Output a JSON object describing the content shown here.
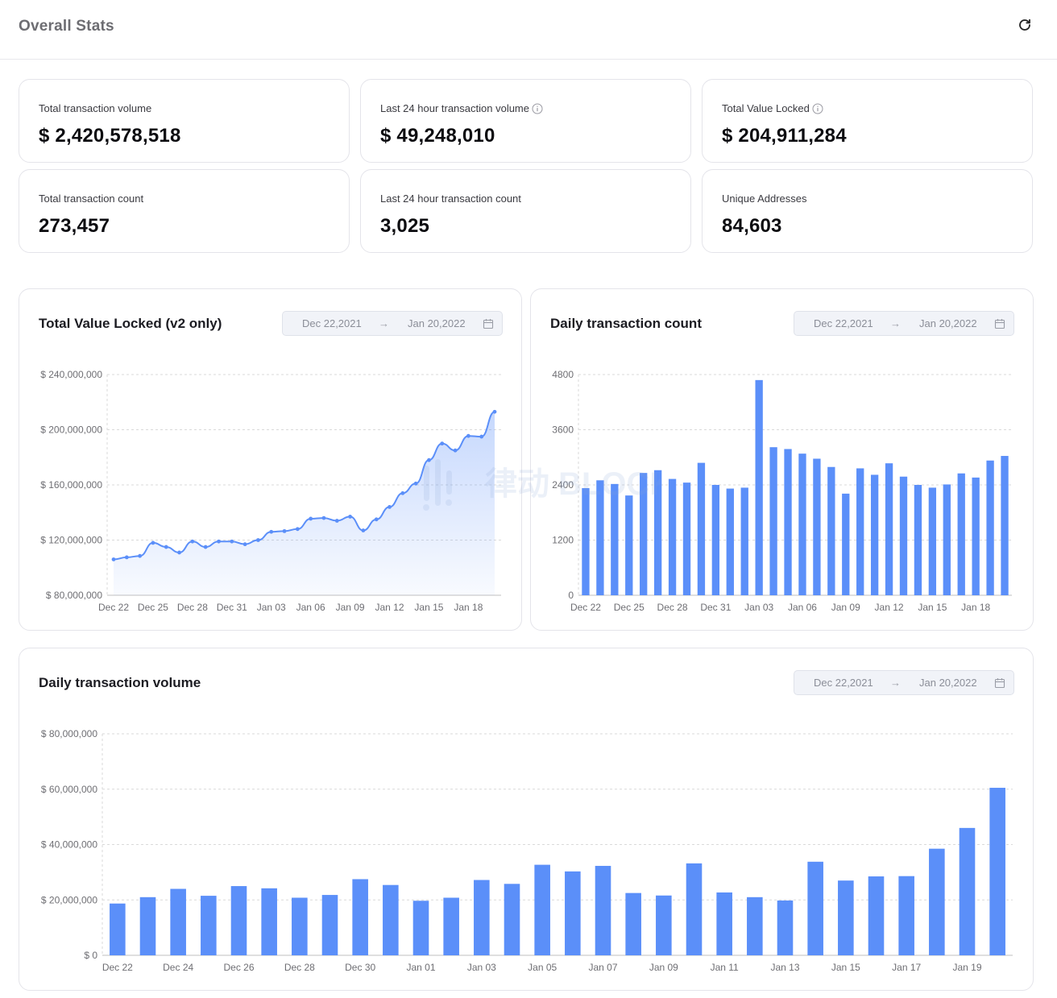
{
  "header": {
    "title": "Overall Stats",
    "refresh_icon": "refresh-icon"
  },
  "stats": [
    {
      "label": "Total transaction volume",
      "value": "$ 2,420,578,518",
      "info": false
    },
    {
      "label": "Last 24 hour transaction volume",
      "value": "$ 49,248,010",
      "info": true
    },
    {
      "label": "Total Value Locked",
      "value": "$ 204,911,284",
      "info": true
    },
    {
      "label": "Total transaction count",
      "value": "273,457",
      "info": false
    },
    {
      "label": "Last 24 hour transaction count",
      "value": "3,025",
      "info": false
    },
    {
      "label": "Unique Addresses",
      "value": "84,603",
      "info": false
    }
  ],
  "date_range": {
    "start": "Dec 22,2021",
    "arrow": "→",
    "end": "Jan 20,2022"
  },
  "colors": {
    "accent": "#5b8ff9",
    "grid": "#d9d9d9",
    "axis_text": "#6e6e73"
  },
  "watermark_text": "律动 BLOCKBEATS",
  "chart_data": [
    {
      "id": "tvl",
      "type": "area",
      "title": "Total Value Locked (v2 only)",
      "x": [
        "Dec 22",
        "Dec 23",
        "Dec 24",
        "Dec 25",
        "Dec 26",
        "Dec 27",
        "Dec 28",
        "Dec 29",
        "Dec 30",
        "Dec 31",
        "Jan 01",
        "Jan 02",
        "Jan 03",
        "Jan 04",
        "Jan 05",
        "Jan 06",
        "Jan 07",
        "Jan 08",
        "Jan 09",
        "Jan 10",
        "Jan 11",
        "Jan 12",
        "Jan 13",
        "Jan 14",
        "Jan 15",
        "Jan 16",
        "Jan 17",
        "Jan 18",
        "Jan 19",
        "Jan 20"
      ],
      "x_tick_labels": [
        "Dec 22",
        "Dec 25",
        "Dec 28",
        "Dec 31",
        "Jan 03",
        "Jan 06",
        "Jan 09",
        "Jan 12",
        "Jan 15",
        "Jan 18"
      ],
      "values": [
        106000000,
        107500000,
        108500000,
        118000000,
        115000000,
        111000000,
        119000000,
        115000000,
        119000000,
        119000000,
        117000000,
        120000000,
        126000000,
        126500000,
        128000000,
        135500000,
        136000000,
        134000000,
        137000000,
        127000000,
        135000000,
        144000000,
        154000000,
        161000000,
        178000000,
        190000000,
        185000000,
        195500000,
        195000000,
        213000000
      ],
      "y_ticks": [
        "$ 240,000,000",
        "$ 200,000,000",
        "$ 160,000,000",
        "$ 120,000,000",
        "$ 80,000,000"
      ],
      "ylim": [
        80000000,
        240000000
      ]
    },
    {
      "id": "count",
      "type": "bar",
      "title": "Daily transaction count",
      "x": [
        "Dec 22",
        "Dec 23",
        "Dec 24",
        "Dec 25",
        "Dec 26",
        "Dec 27",
        "Dec 28",
        "Dec 29",
        "Dec 30",
        "Dec 31",
        "Jan 01",
        "Jan 02",
        "Jan 03",
        "Jan 04",
        "Jan 05",
        "Jan 06",
        "Jan 07",
        "Jan 08",
        "Jan 09",
        "Jan 10",
        "Jan 11",
        "Jan 12",
        "Jan 13",
        "Jan 14",
        "Jan 15",
        "Jan 16",
        "Jan 17",
        "Jan 18",
        "Jan 19",
        "Jan 20"
      ],
      "x_tick_labels": [
        "Dec 22",
        "Dec 25",
        "Dec 28",
        "Dec 31",
        "Jan 03",
        "Jan 06",
        "Jan 09",
        "Jan 12",
        "Jan 15",
        "Jan 18"
      ],
      "values": [
        2330,
        2500,
        2420,
        2170,
        2660,
        2720,
        2530,
        2450,
        2880,
        2400,
        2320,
        2340,
        4680,
        3220,
        3180,
        3080,
        2970,
        2790,
        2210,
        2760,
        2620,
        2870,
        2580,
        2400,
        2340,
        2410,
        2650,
        2560,
        2930,
        3030
      ],
      "y_ticks": [
        "4800",
        "3600",
        "2400",
        "1200",
        "0"
      ],
      "ylim": [
        0,
        4800
      ]
    },
    {
      "id": "volume",
      "type": "bar",
      "title": "Daily transaction volume",
      "x": [
        "Dec 22",
        "Dec 23",
        "Dec 24",
        "Dec 25",
        "Dec 26",
        "Dec 27",
        "Dec 28",
        "Dec 29",
        "Dec 30",
        "Dec 31",
        "Jan 01",
        "Jan 02",
        "Jan 03",
        "Jan 04",
        "Jan 05",
        "Jan 06",
        "Jan 07",
        "Jan 08",
        "Jan 09",
        "Jan 10",
        "Jan 11",
        "Jan 12",
        "Jan 13",
        "Jan 14",
        "Jan 15",
        "Jan 16",
        "Jan 17",
        "Jan 18",
        "Jan 19",
        "Jan 20"
      ],
      "x_tick_labels": [
        "Dec 22",
        "Dec 24",
        "Dec 26",
        "Dec 28",
        "Dec 30",
        "Jan 01",
        "Jan 03",
        "Jan 05",
        "Jan 07",
        "Jan 09",
        "Jan 11",
        "Jan 13",
        "Jan 15",
        "Jan 17",
        "Jan 19"
      ],
      "values": [
        18700000,
        21000000,
        24000000,
        21500000,
        25000000,
        24200000,
        20800000,
        21800000,
        27500000,
        25400000,
        19700000,
        20800000,
        27200000,
        25800000,
        32700000,
        30300000,
        32300000,
        22500000,
        21600000,
        33200000,
        22700000,
        21000000,
        19800000,
        33800000,
        27000000,
        28500000,
        28600000,
        38500000,
        46000000,
        60500000
      ],
      "y_ticks": [
        "$ 80,000,000",
        "$ 60,000,000",
        "$ 40,000,000",
        "$ 20,000,000",
        "$ 0"
      ],
      "ylim": [
        0,
        80000000
      ]
    }
  ]
}
